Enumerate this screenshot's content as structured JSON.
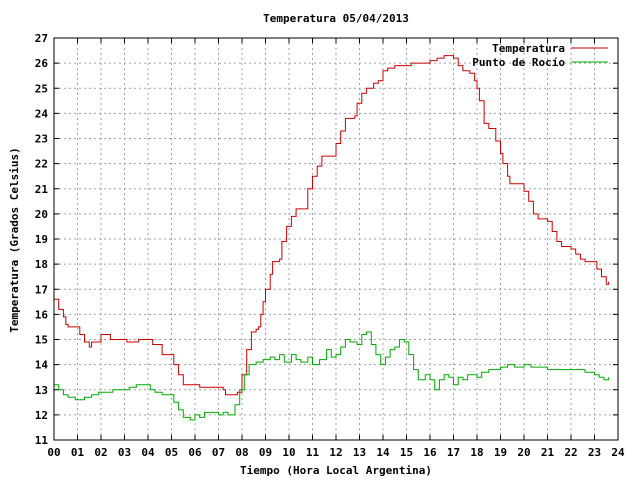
{
  "chart_data": {
    "type": "line",
    "title": "Temperatura 05/04/2013",
    "xlabel": "Tiempo (Hora Local Argentina)",
    "ylabel": "Temperatura (Grados Celsius)",
    "xlim": [
      0,
      24
    ],
    "ylim": [
      11,
      27
    ],
    "x_tick_labels": [
      "00",
      "01",
      "02",
      "03",
      "04",
      "05",
      "06",
      "07",
      "08",
      "09",
      "10",
      "11",
      "12",
      "13",
      "14",
      "15",
      "16",
      "17",
      "18",
      "19",
      "20",
      "21",
      "22",
      "23",
      "24"
    ],
    "y_ticks": [
      11,
      12,
      13,
      14,
      15,
      16,
      17,
      18,
      19,
      20,
      21,
      22,
      23,
      24,
      25,
      26,
      27
    ],
    "grid": true,
    "legend_position": "top-right",
    "series": [
      {
        "name": "Temperatura",
        "color": "#cc0000",
        "points": [
          [
            0.0,
            16.6
          ],
          [
            0.2,
            16.2
          ],
          [
            0.4,
            15.9
          ],
          [
            0.5,
            15.6
          ],
          [
            0.6,
            15.5
          ],
          [
            1.0,
            15.5
          ],
          [
            1.1,
            15.2
          ],
          [
            1.3,
            14.9
          ],
          [
            1.5,
            14.7
          ],
          [
            1.6,
            14.9
          ],
          [
            1.9,
            14.9
          ],
          [
            2.0,
            15.2
          ],
          [
            2.3,
            15.2
          ],
          [
            2.4,
            15.0
          ],
          [
            3.0,
            15.0
          ],
          [
            3.1,
            14.9
          ],
          [
            3.5,
            14.9
          ],
          [
            3.6,
            15.0
          ],
          [
            4.0,
            15.0
          ],
          [
            4.2,
            14.8
          ],
          [
            4.4,
            14.8
          ],
          [
            4.6,
            14.4
          ],
          [
            4.9,
            14.4
          ],
          [
            5.1,
            14.0
          ],
          [
            5.3,
            13.6
          ],
          [
            5.5,
            13.2
          ],
          [
            6.0,
            13.2
          ],
          [
            6.2,
            13.1
          ],
          [
            7.0,
            13.1
          ],
          [
            7.2,
            13.0
          ],
          [
            7.3,
            12.8
          ],
          [
            7.5,
            12.8
          ],
          [
            7.8,
            12.9
          ],
          [
            8.0,
            13.6
          ],
          [
            8.2,
            14.6
          ],
          [
            8.4,
            15.3
          ],
          [
            8.6,
            15.4
          ],
          [
            8.7,
            15.5
          ],
          [
            8.8,
            16.0
          ],
          [
            8.9,
            16.5
          ],
          [
            9.0,
            17.0
          ],
          [
            9.2,
            17.6
          ],
          [
            9.3,
            18.1
          ],
          [
            9.6,
            18.2
          ],
          [
            9.7,
            18.9
          ],
          [
            9.9,
            19.5
          ],
          [
            10.1,
            19.9
          ],
          [
            10.3,
            20.2
          ],
          [
            10.6,
            20.2
          ],
          [
            10.8,
            21.0
          ],
          [
            11.0,
            21.5
          ],
          [
            11.2,
            21.9
          ],
          [
            11.4,
            22.3
          ],
          [
            11.8,
            22.3
          ],
          [
            12.0,
            22.8
          ],
          [
            12.2,
            23.3
          ],
          [
            12.4,
            23.8
          ],
          [
            12.8,
            23.9
          ],
          [
            12.9,
            24.4
          ],
          [
            13.1,
            24.8
          ],
          [
            13.3,
            25.0
          ],
          [
            13.6,
            25.2
          ],
          [
            13.8,
            25.3
          ],
          [
            14.0,
            25.7
          ],
          [
            14.2,
            25.8
          ],
          [
            14.5,
            25.9
          ],
          [
            15.0,
            25.9
          ],
          [
            15.2,
            26.0
          ],
          [
            15.8,
            26.0
          ],
          [
            16.0,
            26.1
          ],
          [
            16.3,
            26.2
          ],
          [
            16.6,
            26.3
          ],
          [
            17.0,
            26.2
          ],
          [
            17.2,
            25.9
          ],
          [
            17.4,
            25.7
          ],
          [
            17.7,
            25.6
          ],
          [
            17.9,
            25.3
          ],
          [
            18.0,
            25.0
          ],
          [
            18.1,
            24.5
          ],
          [
            18.3,
            23.6
          ],
          [
            18.5,
            23.4
          ],
          [
            18.7,
            23.4
          ],
          [
            18.8,
            22.9
          ],
          [
            19.0,
            22.4
          ],
          [
            19.1,
            22.0
          ],
          [
            19.3,
            21.5
          ],
          [
            19.4,
            21.2
          ],
          [
            19.8,
            21.2
          ],
          [
            20.0,
            20.9
          ],
          [
            20.2,
            20.5
          ],
          [
            20.4,
            20.0
          ],
          [
            20.6,
            19.8
          ],
          [
            21.0,
            19.7
          ],
          [
            21.2,
            19.3
          ],
          [
            21.4,
            18.9
          ],
          [
            21.6,
            18.7
          ],
          [
            22.0,
            18.6
          ],
          [
            22.2,
            18.4
          ],
          [
            22.4,
            18.2
          ],
          [
            22.6,
            18.1
          ],
          [
            22.9,
            18.1
          ],
          [
            23.1,
            17.8
          ],
          [
            23.3,
            17.5
          ],
          [
            23.5,
            17.2
          ],
          [
            23.6,
            17.3
          ]
        ]
      },
      {
        "name": "Punto de Rocío",
        "color": "#00aa00",
        "points": [
          [
            0.0,
            13.2
          ],
          [
            0.2,
            13.0
          ],
          [
            0.4,
            12.8
          ],
          [
            0.6,
            12.7
          ],
          [
            0.9,
            12.6
          ],
          [
            1.1,
            12.6
          ],
          [
            1.3,
            12.7
          ],
          [
            1.6,
            12.8
          ],
          [
            1.9,
            12.9
          ],
          [
            2.2,
            12.9
          ],
          [
            2.5,
            13.0
          ],
          [
            2.9,
            13.0
          ],
          [
            3.2,
            13.1
          ],
          [
            3.5,
            13.2
          ],
          [
            3.8,
            13.2
          ],
          [
            4.1,
            13.0
          ],
          [
            4.3,
            12.9
          ],
          [
            4.6,
            12.8
          ],
          [
            4.9,
            12.8
          ],
          [
            5.1,
            12.5
          ],
          [
            5.3,
            12.2
          ],
          [
            5.5,
            11.9
          ],
          [
            5.8,
            11.8
          ],
          [
            6.0,
            12.0
          ],
          [
            6.2,
            11.9
          ],
          [
            6.4,
            12.1
          ],
          [
            6.7,
            12.1
          ],
          [
            7.0,
            12.0
          ],
          [
            7.2,
            12.1
          ],
          [
            7.4,
            12.0
          ],
          [
            7.6,
            12.0
          ],
          [
            7.7,
            12.4
          ],
          [
            7.9,
            13.0
          ],
          [
            8.1,
            13.6
          ],
          [
            8.3,
            14.0
          ],
          [
            8.6,
            14.1
          ],
          [
            8.9,
            14.2
          ],
          [
            9.2,
            14.3
          ],
          [
            9.4,
            14.2
          ],
          [
            9.6,
            14.4
          ],
          [
            9.8,
            14.1
          ],
          [
            10.1,
            14.4
          ],
          [
            10.3,
            14.2
          ],
          [
            10.5,
            14.1
          ],
          [
            10.8,
            14.3
          ],
          [
            11.0,
            14.0
          ],
          [
            11.3,
            14.2
          ],
          [
            11.6,
            14.6
          ],
          [
            11.8,
            14.3
          ],
          [
            12.0,
            14.4
          ],
          [
            12.2,
            14.7
          ],
          [
            12.4,
            15.0
          ],
          [
            12.6,
            14.9
          ],
          [
            12.9,
            14.8
          ],
          [
            13.1,
            15.2
          ],
          [
            13.3,
            15.3
          ],
          [
            13.5,
            14.8
          ],
          [
            13.7,
            14.4
          ],
          [
            13.9,
            14.0
          ],
          [
            14.1,
            14.3
          ],
          [
            14.3,
            14.6
          ],
          [
            14.5,
            14.7
          ],
          [
            14.7,
            15.0
          ],
          [
            14.9,
            14.9
          ],
          [
            15.1,
            14.4
          ],
          [
            15.3,
            13.8
          ],
          [
            15.5,
            13.4
          ],
          [
            15.8,
            13.6
          ],
          [
            16.0,
            13.4
          ],
          [
            16.2,
            13.0
          ],
          [
            16.4,
            13.4
          ],
          [
            16.6,
            13.6
          ],
          [
            16.8,
            13.5
          ],
          [
            17.0,
            13.2
          ],
          [
            17.2,
            13.5
          ],
          [
            17.4,
            13.4
          ],
          [
            17.6,
            13.6
          ],
          [
            17.8,
            13.6
          ],
          [
            18.0,
            13.5
          ],
          [
            18.2,
            13.7
          ],
          [
            18.5,
            13.8
          ],
          [
            18.8,
            13.8
          ],
          [
            19.0,
            13.9
          ],
          [
            19.3,
            14.0
          ],
          [
            19.6,
            13.9
          ],
          [
            20.0,
            14.0
          ],
          [
            20.3,
            13.9
          ],
          [
            20.6,
            13.9
          ],
          [
            21.0,
            13.8
          ],
          [
            21.4,
            13.8
          ],
          [
            21.8,
            13.8
          ],
          [
            22.2,
            13.8
          ],
          [
            22.6,
            13.7
          ],
          [
            23.0,
            13.6
          ],
          [
            23.2,
            13.5
          ],
          [
            23.4,
            13.4
          ],
          [
            23.6,
            13.5
          ]
        ]
      }
    ]
  }
}
